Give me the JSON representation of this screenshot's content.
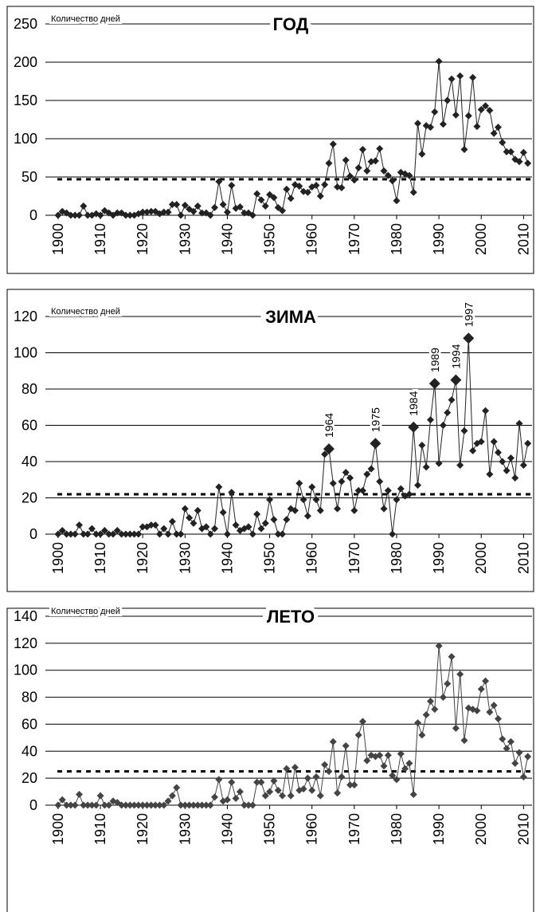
{
  "chart_data": [
    {
      "type": "line",
      "title": "ГОД",
      "y_label": "Количество дней",
      "color": "#222222",
      "grid": true,
      "reference_line": 47,
      "x": [
        1900,
        1901,
        1902,
        1903,
        1904,
        1905,
        1906,
        1907,
        1908,
        1909,
        1910,
        1911,
        1912,
        1913,
        1914,
        1915,
        1916,
        1917,
        1918,
        1919,
        1920,
        1921,
        1922,
        1923,
        1924,
        1925,
        1926,
        1927,
        1928,
        1929,
        1930,
        1931,
        1932,
        1933,
        1934,
        1935,
        1936,
        1937,
        1938,
        1939,
        1940,
        1941,
        1942,
        1943,
        1944,
        1945,
        1946,
        1947,
        1948,
        1949,
        1950,
        1951,
        1952,
        1953,
        1954,
        1955,
        1956,
        1957,
        1958,
        1959,
        1960,
        1961,
        1962,
        1963,
        1964,
        1965,
        1966,
        1967,
        1968,
        1969,
        1970,
        1971,
        1972,
        1973,
        1974,
        1975,
        1976,
        1977,
        1978,
        1979,
        1980,
        1981,
        1982,
        1983,
        1984,
        1985,
        1986,
        1987,
        1988,
        1989,
        1990,
        1991,
        1992,
        1993,
        1994,
        1995,
        1996,
        1997,
        1998,
        1999,
        2000,
        2001,
        2002,
        2003,
        2004,
        2005,
        2006,
        2007,
        2008,
        2009,
        2010,
        2011
      ],
      "values": [
        0,
        5,
        3,
        0,
        0,
        0,
        12,
        0,
        0,
        2,
        0,
        6,
        3,
        0,
        3,
        3,
        0,
        0,
        0,
        2,
        4,
        4,
        5,
        5,
        2,
        4,
        4,
        14,
        14,
        0,
        13,
        8,
        5,
        12,
        3,
        3,
        0,
        10,
        44,
        14,
        4,
        39,
        9,
        11,
        3,
        3,
        0,
        28,
        20,
        12,
        27,
        23,
        10,
        6,
        34,
        22,
        40,
        38,
        31,
        30,
        37,
        39,
        25,
        40,
        68,
        93,
        37,
        36,
        72,
        51,
        46,
        62,
        86,
        58,
        70,
        71,
        87,
        58,
        52,
        45,
        19,
        56,
        54,
        52,
        30,
        120,
        80,
        117,
        115,
        135,
        201,
        119,
        150,
        178,
        131,
        182,
        86,
        130,
        180,
        116,
        138,
        143,
        137,
        107,
        115,
        95,
        83,
        83,
        73,
        70,
        82,
        68
      ],
      "xlim": [
        1897,
        2012
      ],
      "xticks": [
        1900,
        1910,
        1920,
        1930,
        1940,
        1950,
        1960,
        1970,
        1980,
        1990,
        2000,
        2010
      ],
      "ylim": [
        0,
        250
      ],
      "yticks": [
        0,
        50,
        100,
        150,
        200,
        250
      ]
    },
    {
      "type": "line",
      "title": "ЗИМА",
      "y_label": "Количество дней",
      "color": "#222222",
      "grid": true,
      "reference_line": 22,
      "x": [
        1900,
        1901,
        1902,
        1903,
        1904,
        1905,
        1906,
        1907,
        1908,
        1909,
        1910,
        1911,
        1912,
        1913,
        1914,
        1915,
        1916,
        1917,
        1918,
        1919,
        1920,
        1921,
        1922,
        1923,
        1924,
        1925,
        1926,
        1927,
        1928,
        1929,
        1930,
        1931,
        1932,
        1933,
        1934,
        1935,
        1936,
        1937,
        1938,
        1939,
        1940,
        1941,
        1942,
        1943,
        1944,
        1945,
        1946,
        1947,
        1948,
        1949,
        1950,
        1951,
        1952,
        1953,
        1954,
        1955,
        1956,
        1957,
        1958,
        1959,
        1960,
        1961,
        1962,
        1963,
        1964,
        1965,
        1966,
        1967,
        1968,
        1969,
        1970,
        1971,
        1972,
        1973,
        1974,
        1975,
        1976,
        1977,
        1978,
        1979,
        1980,
        1981,
        1982,
        1983,
        1984,
        1985,
        1986,
        1987,
        1988,
        1989,
        1990,
        1991,
        1992,
        1993,
        1994,
        1995,
        1996,
        1997,
        1998,
        1999,
        2000,
        2001,
        2002,
        2003,
        2004,
        2005,
        2006,
        2007,
        2008,
        2009,
        2010,
        2011
      ],
      "values": [
        0,
        2,
        0,
        0,
        0,
        5,
        0,
        0,
        3,
        0,
        0,
        2,
        0,
        0,
        2,
        0,
        0,
        0,
        0,
        0,
        4,
        4,
        5,
        5,
        0,
        3,
        0,
        7,
        0,
        0,
        14,
        9,
        6,
        13,
        3,
        4,
        0,
        3,
        26,
        12,
        0,
        23,
        5,
        2,
        3,
        4,
        0,
        11,
        3,
        6,
        19,
        8,
        0,
        0,
        8,
        14,
        13,
        28,
        19,
        10,
        26,
        19,
        13,
        44,
        47,
        28,
        14,
        29,
        34,
        31,
        13,
        24,
        24,
        33,
        36,
        50,
        29,
        14,
        24,
        0,
        19,
        25,
        21,
        22,
        59,
        27,
        49,
        37,
        63,
        83,
        39,
        60,
        67,
        74,
        85,
        38,
        57,
        108,
        46,
        50,
        51,
        68,
        33,
        51,
        45,
        40,
        35,
        42,
        31,
        61,
        38,
        50
      ],
      "annotations": [
        {
          "text": "1964",
          "x": 1964
        },
        {
          "text": "1975",
          "x": 1975
        },
        {
          "text": "1984",
          "x": 1984
        },
        {
          "text": "1989",
          "x": 1989
        },
        {
          "text": "1994",
          "x": 1994
        },
        {
          "text": "1997",
          "x": 1997
        }
      ],
      "xlim": [
        1897,
        2012
      ],
      "xticks": [
        1900,
        1910,
        1920,
        1930,
        1940,
        1950,
        1960,
        1970,
        1980,
        1990,
        2000,
        2010
      ],
      "ylim": [
        0,
        120
      ],
      "yticks": [
        0,
        20,
        40,
        60,
        80,
        100,
        120
      ]
    },
    {
      "type": "line",
      "title": "ЛЕТО",
      "y_label": "Количество дней",
      "color": "#444444",
      "grid": true,
      "reference_line": 25,
      "x": [
        1900,
        1901,
        1902,
        1903,
        1904,
        1905,
        1906,
        1907,
        1908,
        1909,
        1910,
        1911,
        1912,
        1913,
        1914,
        1915,
        1916,
        1917,
        1918,
        1919,
        1920,
        1921,
        1922,
        1923,
        1924,
        1925,
        1926,
        1927,
        1928,
        1929,
        1930,
        1931,
        1932,
        1933,
        1934,
        1935,
        1936,
        1937,
        1938,
        1939,
        1940,
        1941,
        1942,
        1943,
        1944,
        1945,
        1946,
        1947,
        1948,
        1949,
        1950,
        1951,
        1952,
        1953,
        1954,
        1955,
        1956,
        1957,
        1958,
        1959,
        1960,
        1961,
        1962,
        1963,
        1964,
        1965,
        1966,
        1967,
        1968,
        1969,
        1970,
        1971,
        1972,
        1973,
        1974,
        1975,
        1976,
        1977,
        1978,
        1979,
        1980,
        1981,
        1982,
        1983,
        1984,
        1985,
        1986,
        1987,
        1988,
        1989,
        1990,
        1991,
        1992,
        1993,
        1994,
        1995,
        1996,
        1997,
        1998,
        1999,
        2000,
        2001,
        2002,
        2003,
        2004,
        2005,
        2006,
        2007,
        2008,
        2009,
        2010,
        2011
      ],
      "values": [
        0,
        4,
        0,
        0,
        0,
        8,
        0,
        0,
        0,
        0,
        7,
        0,
        0,
        3,
        2,
        0,
        0,
        0,
        0,
        0,
        0,
        0,
        0,
        0,
        0,
        0,
        3,
        7,
        13,
        0,
        0,
        0,
        0,
        0,
        0,
        0,
        0,
        6,
        19,
        3,
        4,
        17,
        5,
        10,
        0,
        0,
        0,
        17,
        17,
        7,
        10,
        18,
        11,
        7,
        27,
        7,
        28,
        11,
        12,
        20,
        11,
        21,
        7,
        30,
        25,
        47,
        9,
        21,
        44,
        15,
        15,
        52,
        62,
        33,
        37,
        36,
        37,
        29,
        37,
        22,
        19,
        38,
        27,
        31,
        8,
        61,
        52,
        67,
        77,
        71,
        118,
        80,
        90,
        110,
        57,
        97,
        48,
        72,
        71,
        70,
        86,
        92,
        69,
        74,
        64,
        49,
        42,
        47,
        31,
        39,
        21,
        36
      ],
      "xlim": [
        1897,
        2012
      ],
      "xticks": [
        1900,
        1910,
        1920,
        1930,
        1940,
        1950,
        1960,
        1970,
        1980,
        1990,
        2000,
        2010
      ],
      "ylim": [
        0,
        140
      ],
      "yticks": [
        0,
        20,
        40,
        60,
        80,
        100,
        120,
        140
      ]
    }
  ]
}
